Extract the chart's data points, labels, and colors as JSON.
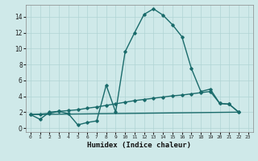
{
  "xlabel": "Humidex (Indice chaleur)",
  "background_color": "#cfe9e9",
  "grid_color": "#b0d4d4",
  "line_color": "#1a6b6b",
  "spine_color": "#888888",
  "xlim": [
    -0.5,
    23.5
  ],
  "ylim": [
    -0.5,
    15.5
  ],
  "xticks": [
    0,
    1,
    2,
    3,
    4,
    5,
    6,
    7,
    8,
    9,
    10,
    11,
    12,
    13,
    14,
    15,
    16,
    17,
    18,
    19,
    20,
    21,
    22,
    23
  ],
  "yticks": [
    0,
    2,
    4,
    6,
    8,
    10,
    12,
    14
  ],
  "curve1_x": [
    0,
    1,
    2,
    3,
    4,
    5,
    6,
    7,
    8,
    9,
    10,
    11,
    12,
    13,
    14,
    15,
    16,
    17,
    18,
    19,
    20,
    21,
    22
  ],
  "curve1_y": [
    1.7,
    1.1,
    2.0,
    2.1,
    1.8,
    0.4,
    0.7,
    0.9,
    5.4,
    2.0,
    9.6,
    12.0,
    14.3,
    15.0,
    14.2,
    13.0,
    11.5,
    7.5,
    4.6,
    4.9,
    3.1,
    3.0,
    2.0
  ],
  "curve2_x": [
    0,
    1,
    2,
    3,
    4,
    5,
    6,
    7,
    8,
    9,
    10,
    11,
    12,
    13,
    14,
    15,
    16,
    17,
    18,
    19,
    20,
    21,
    22
  ],
  "curve2_y": [
    1.7,
    1.75,
    1.85,
    2.1,
    2.2,
    2.3,
    2.5,
    2.65,
    2.85,
    3.05,
    3.25,
    3.45,
    3.6,
    3.75,
    3.9,
    4.05,
    4.15,
    4.3,
    4.45,
    4.6,
    3.1,
    3.0,
    2.0
  ],
  "curve3_x": [
    0,
    22
  ],
  "curve3_y": [
    1.7,
    2.0
  ]
}
